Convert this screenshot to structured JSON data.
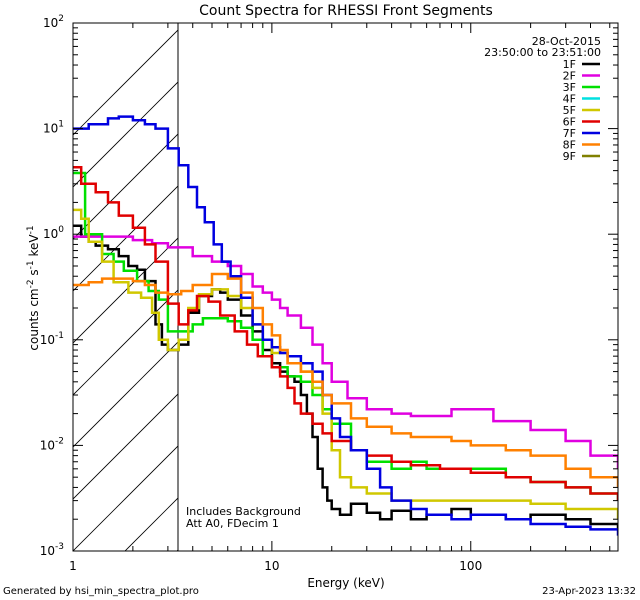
{
  "chart_data": {
    "type": "line",
    "title": "Count Spectra for RHESSI Front Segments",
    "xlabel": "Energy (keV)",
    "ylabel": "counts cm",
    "ylabel_units_a": "-2",
    "ylabel_units_b": " s",
    "ylabel_units_c": "-1",
    "ylabel_units_d": " keV",
    "ylabel_units_e": "-1",
    "x_scale": "log",
    "y_scale": "log",
    "xlim": [
      1,
      550
    ],
    "ylim": [
      0.001,
      100
    ],
    "x_ticks": [
      {
        "value": 1,
        "label": "1"
      },
      {
        "value": 10,
        "label": "10"
      },
      {
        "value": 100,
        "label": "100"
      }
    ],
    "y_ticks": [
      {
        "value": 0.001,
        "base": "10",
        "exp": "-3"
      },
      {
        "value": 0.01,
        "base": "10",
        "exp": "-2"
      },
      {
        "value": 0.1,
        "base": "10",
        "exp": "-1"
      },
      {
        "value": 1,
        "base": "10",
        "exp": "0"
      },
      {
        "value": 10,
        "base": "10",
        "exp": "1"
      },
      {
        "value": 100,
        "base": "10",
        "exp": "2"
      }
    ],
    "date": "28-Oct-2015",
    "time_range": "23:50:00 to 23:51:00",
    "annotation_line1": "Includes Background",
    "annotation_line2": "Att A0, FDecim 1",
    "hatched_region_xmax": 3,
    "footer_left": "Generated by hsi_min_spectra_plot.pro",
    "footer_right": "23-Apr-2023 13:32",
    "series": [
      {
        "name": "1F",
        "color": "#000000",
        "points": [
          [
            1,
            1.2
          ],
          [
            1.1,
            0.95
          ],
          [
            1.2,
            0.85
          ],
          [
            1.3,
            0.78
          ],
          [
            1.5,
            0.72
          ],
          [
            1.7,
            0.62
          ],
          [
            1.9,
            0.5
          ],
          [
            2.1,
            0.46
          ],
          [
            2.3,
            0.36
          ],
          [
            2.6,
            0.14
          ],
          [
            2.8,
            0.09
          ],
          [
            3,
            0.08
          ],
          [
            3.4,
            0.09
          ],
          [
            3.8,
            0.18
          ],
          [
            4.3,
            0.26
          ],
          [
            5,
            0.3
          ],
          [
            5.5,
            0.28
          ],
          [
            6,
            0.24
          ],
          [
            7,
            0.17
          ],
          [
            8,
            0.12
          ],
          [
            9,
            0.08
          ],
          [
            10,
            0.06
          ],
          [
            11,
            0.05
          ],
          [
            12,
            0.045
          ],
          [
            13,
            0.04
          ],
          [
            14,
            0.03
          ],
          [
            15,
            0.02
          ],
          [
            16,
            0.012
          ],
          [
            17,
            0.006
          ],
          [
            18,
            0.004
          ],
          [
            19,
            0.003
          ],
          [
            20,
            0.0025
          ],
          [
            22,
            0.0022
          ],
          [
            25,
            0.0028
          ],
          [
            30,
            0.0023
          ],
          [
            35,
            0.002
          ],
          [
            40,
            0.0024
          ],
          [
            50,
            0.002
          ],
          [
            60,
            0.0022
          ],
          [
            80,
            0.0025
          ],
          [
            100,
            0.0022
          ],
          [
            150,
            0.002
          ],
          [
            200,
            0.0022
          ],
          [
            300,
            0.002
          ],
          [
            400,
            0.0018
          ],
          [
            550,
            0.0016
          ]
        ]
      },
      {
        "name": "2F",
        "color": "#e000e0",
        "points": [
          [
            1,
            0.95
          ],
          [
            1.5,
            0.95
          ],
          [
            2,
            0.88
          ],
          [
            2.5,
            0.82
          ],
          [
            3,
            0.75
          ],
          [
            4,
            0.62
          ],
          [
            5,
            0.55
          ],
          [
            6,
            0.5
          ],
          [
            7,
            0.42
          ],
          [
            8,
            0.32
          ],
          [
            9,
            0.28
          ],
          [
            10,
            0.24
          ],
          [
            11,
            0.2
          ],
          [
            12,
            0.17
          ],
          [
            14,
            0.13
          ],
          [
            16,
            0.09
          ],
          [
            18,
            0.06
          ],
          [
            20,
            0.04
          ],
          [
            24,
            0.028
          ],
          [
            30,
            0.022
          ],
          [
            40,
            0.02
          ],
          [
            50,
            0.019
          ],
          [
            60,
            0.019
          ],
          [
            80,
            0.022
          ],
          [
            100,
            0.022
          ],
          [
            130,
            0.017
          ],
          [
            200,
            0.014
          ],
          [
            300,
            0.011
          ],
          [
            400,
            0.008
          ],
          [
            550,
            0.006
          ]
        ]
      },
      {
        "name": "3F",
        "color": "#00e000",
        "points": [
          [
            1,
            3.8
          ],
          [
            1.15,
            1.0
          ],
          [
            1.4,
            0.65
          ],
          [
            1.6,
            0.55
          ],
          [
            1.8,
            0.45
          ],
          [
            2.1,
            0.36
          ],
          [
            2.4,
            0.29
          ],
          [
            2.7,
            0.24
          ],
          [
            3,
            0.12
          ],
          [
            3.5,
            0.12
          ],
          [
            4,
            0.14
          ],
          [
            4.5,
            0.16
          ],
          [
            5,
            0.16
          ],
          [
            6,
            0.15
          ],
          [
            7,
            0.13
          ],
          [
            8,
            0.1
          ],
          [
            9,
            0.07
          ],
          [
            10,
            0.055
          ],
          [
            12,
            0.045
          ],
          [
            14,
            0.04
          ],
          [
            16,
            0.03
          ],
          [
            18,
            0.022
          ],
          [
            20,
            0.016
          ],
          [
            25,
            0.009
          ],
          [
            30,
            0.007
          ],
          [
            40,
            0.006
          ],
          [
            50,
            0.007
          ],
          [
            60,
            0.006
          ],
          [
            80,
            0.006
          ],
          [
            100,
            0.006
          ],
          [
            150,
            0.005
          ],
          [
            200,
            0.0045
          ],
          [
            300,
            0.004
          ],
          [
            400,
            0.0035
          ],
          [
            550,
            0.003
          ]
        ]
      },
      {
        "name": "4F",
        "color": "#00e0e0",
        "points": []
      },
      {
        "name": "5F",
        "color": "#d0c800",
        "points": [
          [
            1,
            1.7
          ],
          [
            1.1,
            1.4
          ],
          [
            1.2,
            0.85
          ],
          [
            1.4,
            0.55
          ],
          [
            1.6,
            0.35
          ],
          [
            1.9,
            0.28
          ],
          [
            2.2,
            0.25
          ],
          [
            2.5,
            0.18
          ],
          [
            2.7,
            0.1
          ],
          [
            3,
            0.08
          ],
          [
            3.4,
            0.1
          ],
          [
            3.8,
            0.2
          ],
          [
            4.3,
            0.27
          ],
          [
            5,
            0.3
          ],
          [
            6,
            0.26
          ],
          [
            7,
            0.2
          ],
          [
            8,
            0.14
          ],
          [
            9,
            0.1
          ],
          [
            10,
            0.075
          ],
          [
            12,
            0.06
          ],
          [
            14,
            0.05
          ],
          [
            16,
            0.035
          ],
          [
            18,
            0.02
          ],
          [
            20,
            0.009
          ],
          [
            22,
            0.005
          ],
          [
            25,
            0.004
          ],
          [
            30,
            0.0035
          ],
          [
            40,
            0.003
          ],
          [
            60,
            0.003
          ],
          [
            100,
            0.003
          ],
          [
            200,
            0.0028
          ],
          [
            300,
            0.0025
          ],
          [
            550,
            0.002
          ]
        ]
      },
      {
        "name": "6F",
        "color": "#e00000",
        "points": [
          [
            1,
            4.3
          ],
          [
            1.1,
            3.0
          ],
          [
            1.3,
            2.5
          ],
          [
            1.5,
            2.0
          ],
          [
            1.7,
            1.5
          ],
          [
            2,
            1.15
          ],
          [
            2.3,
            0.8
          ],
          [
            2.6,
            0.55
          ],
          [
            3,
            0.22
          ],
          [
            3.4,
            0.14
          ],
          [
            3.8,
            0.19
          ],
          [
            4.2,
            0.26
          ],
          [
            4.8,
            0.23
          ],
          [
            5.5,
            0.17
          ],
          [
            6.5,
            0.12
          ],
          [
            7.5,
            0.09
          ],
          [
            8.5,
            0.07
          ],
          [
            10,
            0.055
          ],
          [
            11,
            0.045
          ],
          [
            12,
            0.035
          ],
          [
            13,
            0.025
          ],
          [
            14,
            0.02
          ],
          [
            16,
            0.016
          ],
          [
            18,
            0.013
          ],
          [
            20,
            0.011
          ],
          [
            25,
            0.009
          ],
          [
            30,
            0.008
          ],
          [
            40,
            0.007
          ],
          [
            50,
            0.0065
          ],
          [
            70,
            0.006
          ],
          [
            100,
            0.0055
          ],
          [
            150,
            0.005
          ],
          [
            200,
            0.0045
          ],
          [
            300,
            0.004
          ],
          [
            400,
            0.0035
          ],
          [
            550,
            0.003
          ]
        ]
      },
      {
        "name": "7F",
        "color": "#0000e0",
        "points": [
          [
            1,
            10
          ],
          [
            1.2,
            11
          ],
          [
            1.5,
            12.5
          ],
          [
            1.7,
            13
          ],
          [
            2,
            12
          ],
          [
            2.3,
            11
          ],
          [
            2.6,
            10
          ],
          [
            3,
            6.5
          ],
          [
            3.4,
            4.5
          ],
          [
            3.8,
            2.8
          ],
          [
            4.2,
            1.8
          ],
          [
            4.6,
            1.3
          ],
          [
            5.1,
            0.8
          ],
          [
            5.6,
            0.55
          ],
          [
            6.2,
            0.4
          ],
          [
            7,
            0.25
          ],
          [
            8,
            0.14
          ],
          [
            9,
            0.1
          ],
          [
            10,
            0.085
          ],
          [
            11,
            0.075
          ],
          [
            12,
            0.07
          ],
          [
            14,
            0.06
          ],
          [
            16,
            0.05
          ],
          [
            18,
            0.03
          ],
          [
            20,
            0.018
          ],
          [
            22,
            0.012
          ],
          [
            25,
            0.009
          ],
          [
            30,
            0.006
          ],
          [
            35,
            0.004
          ],
          [
            40,
            0.003
          ],
          [
            50,
            0.0025
          ],
          [
            60,
            0.0022
          ],
          [
            80,
            0.002
          ],
          [
            100,
            0.0022
          ],
          [
            150,
            0.002
          ],
          [
            200,
            0.0018
          ],
          [
            300,
            0.0017
          ],
          [
            400,
            0.0016
          ],
          [
            550,
            0.0014
          ]
        ]
      },
      {
        "name": "8F",
        "color": "#ff8000",
        "points": [
          [
            1,
            0.33
          ],
          [
            1.2,
            0.35
          ],
          [
            1.4,
            0.38
          ],
          [
            1.6,
            0.38
          ],
          [
            1.8,
            0.38
          ],
          [
            2,
            0.36
          ],
          [
            2.3,
            0.33
          ],
          [
            2.6,
            0.28
          ],
          [
            3,
            0.27
          ],
          [
            3.5,
            0.29
          ],
          [
            4,
            0.33
          ],
          [
            5,
            0.42
          ],
          [
            6,
            0.38
          ],
          [
            7,
            0.28
          ],
          [
            8,
            0.2
          ],
          [
            9,
            0.14
          ],
          [
            10,
            0.11
          ],
          [
            11,
            0.08
          ],
          [
            12,
            0.06
          ],
          [
            14,
            0.05
          ],
          [
            16,
            0.04
          ],
          [
            18,
            0.03
          ],
          [
            20,
            0.025
          ],
          [
            25,
            0.018
          ],
          [
            30,
            0.015
          ],
          [
            40,
            0.013
          ],
          [
            50,
            0.012
          ],
          [
            60,
            0.012
          ],
          [
            80,
            0.011
          ],
          [
            100,
            0.01
          ],
          [
            150,
            0.009
          ],
          [
            200,
            0.008
          ],
          [
            300,
            0.006
          ],
          [
            400,
            0.005
          ],
          [
            550,
            0.004
          ]
        ]
      },
      {
        "name": "9F",
        "color": "#808000",
        "points": []
      }
    ]
  }
}
